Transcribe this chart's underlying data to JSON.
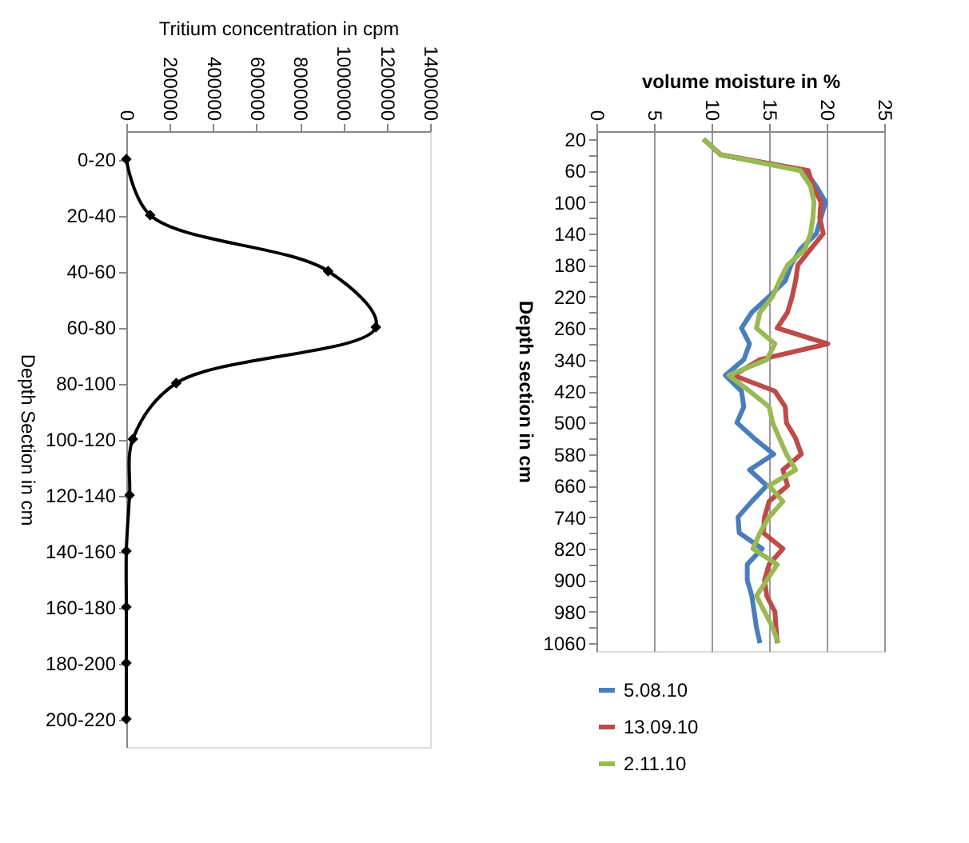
{
  "chart_data": [
    {
      "type": "line",
      "orientation": "horizontal",
      "xlabel": "Tritium concentration in cpm",
      "ylabel": "Depth Section in cm",
      "categories": [
        "0-20",
        "20-40",
        "40-60",
        "60-80",
        "80-100",
        "100-120",
        "120-140",
        "140-160",
        "160-180",
        "180-200",
        "200-220"
      ],
      "series": [
        {
          "color": "#000000",
          "values": [
            0,
            110000,
            930000,
            1150000,
            230000,
            30000,
            15000,
            0,
            0,
            0,
            0
          ]
        }
      ],
      "xlim": [
        0,
        1400000
      ],
      "xticks": [
        0,
        200000,
        400000,
        600000,
        800000,
        1000000,
        1200000,
        1400000
      ],
      "marker": "diamond",
      "grid": false,
      "legend": false
    },
    {
      "type": "line",
      "orientation": "horizontal",
      "xlabel": "volume moisture in %",
      "ylabel": "Depth section in cm",
      "categories": [
        "20",
        null,
        "60",
        null,
        "100",
        null,
        "140",
        null,
        "180",
        null,
        "220",
        null,
        "260",
        null,
        "340",
        null,
        "420",
        null,
        "500",
        null,
        "580",
        null,
        "660",
        null,
        "740",
        null,
        "820",
        null,
        "900",
        null,
        "980",
        null,
        "1060"
      ],
      "series": [
        {
          "name": "5.08.10",
          "color": "#4a7ebb",
          "values": [
            9.3,
            10.8,
            18.1,
            19.1,
            19.9,
            19.5,
            19.1,
            17.7,
            16.9,
            16.4,
            15.0,
            13.5,
            12.6,
            13.3,
            12.8,
            11.2,
            12.6,
            12.8,
            12.2,
            13.7,
            15.4,
            13.3,
            14.8,
            13.5,
            12.3,
            12.4,
            14.4,
            13.1,
            13.1,
            13.5,
            13.7,
            13.9,
            14.2
          ]
        },
        {
          "name": "13.09.10",
          "color": "#be4b48",
          "values": [
            9.3,
            10.8,
            18.4,
            18.8,
            19.5,
            19.4,
            19.7,
            18.6,
            17.5,
            17.3,
            17.0,
            16.6,
            15.7,
            20.1,
            14.2,
            11.9,
            15.5,
            16.4,
            16.5,
            17.3,
            17.8,
            16.2,
            16.6,
            15.0,
            14.6,
            14.5,
            16.2,
            15.0,
            14.6,
            14.8,
            15.5,
            15.6,
            15.7
          ]
        },
        {
          "name": "2.11.10",
          "color": "#98b954",
          "values": [
            9.3,
            10.8,
            17.7,
            18.6,
            18.9,
            18.8,
            18.6,
            18.1,
            16.6,
            15.9,
            15.3,
            14.2,
            13.9,
            15.5,
            14.8,
            11.5,
            13.3,
            15.0,
            15.3,
            15.9,
            16.5,
            17.3,
            15.0,
            16.2,
            15.0,
            14.2,
            13.6,
            15.7,
            14.8,
            13.9,
            14.6,
            15.3,
            15.8
          ]
        }
      ],
      "xlim": [
        0,
        25
      ],
      "xticks": [
        0,
        5,
        10,
        15,
        20,
        25
      ],
      "marker": "none",
      "grid": "x",
      "legend": "bottom"
    }
  ]
}
